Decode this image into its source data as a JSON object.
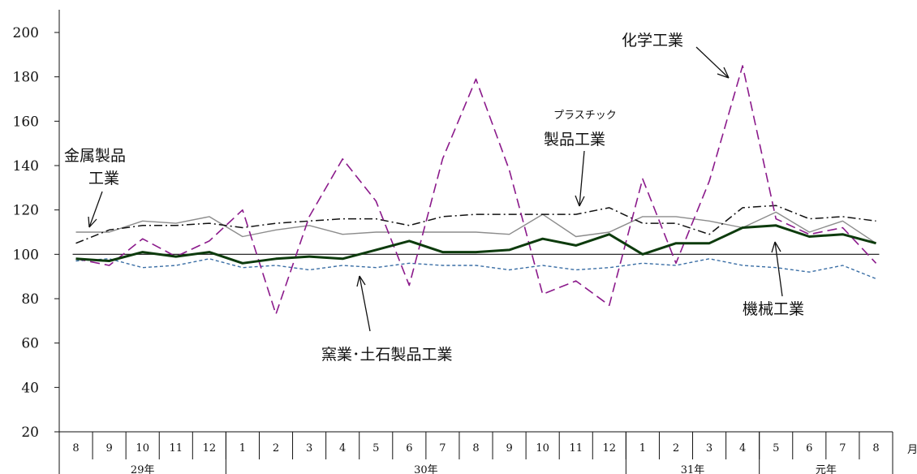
{
  "chart_data": {
    "type": "line",
    "ylim": [
      20,
      200
    ],
    "y_ticks": [
      "20",
      "40",
      "60",
      "80",
      "100",
      "120",
      "140",
      "160",
      "180",
      "200"
    ],
    "month_unit": "月",
    "categories": [
      "8",
      "9",
      "10",
      "11",
      "12",
      "1",
      "2",
      "3",
      "4",
      "5",
      "6",
      "7",
      "8",
      "9",
      "10",
      "11",
      "12",
      "1",
      "2",
      "3",
      "4",
      "5",
      "6",
      "7",
      "8"
    ],
    "year_groups": [
      {
        "label": "29年",
        "count": 5
      },
      {
        "label": "30年",
        "count": 12
      },
      {
        "label": "31年",
        "count": 4
      },
      {
        "label": "元年",
        "count": 4
      }
    ],
    "reference_line": 100,
    "series": [
      {
        "name": "化学工業",
        "color": "#8b1a8b",
        "style": "long-dash",
        "values": [
          98,
          95,
          107,
          99,
          106,
          120,
          73,
          117,
          143,
          124,
          86,
          143,
          179,
          138,
          82,
          88,
          77,
          134,
          96,
          133,
          185,
          116,
          109,
          112,
          96
        ]
      },
      {
        "name": "プラスチック製品工業",
        "color": "#111111",
        "style": "dash-dot",
        "values": [
          105,
          111,
          113,
          113,
          114,
          112,
          114,
          115,
          116,
          116,
          113,
          117,
          118,
          118,
          118,
          118,
          121,
          114,
          114,
          109,
          121,
          122,
          116,
          117,
          115
        ]
      },
      {
        "name": "金属製品工業",
        "color": "#8c8c8c",
        "style": "solid",
        "values": [
          110,
          110,
          115,
          114,
          117,
          108,
          111,
          113,
          109,
          110,
          110,
          110,
          110,
          109,
          118,
          108,
          110,
          117,
          117,
          115,
          112,
          119,
          110,
          115,
          105
        ]
      },
      {
        "name": "機械工業",
        "color": "#0d3b0d",
        "style": "thick",
        "values": [
          98,
          97,
          101,
          99,
          101,
          96,
          98,
          99,
          98,
          102,
          106,
          101,
          101,
          102,
          107,
          104,
          109,
          100,
          105,
          105,
          112,
          113,
          108,
          109,
          105
        ]
      },
      {
        "name": "窯業・土石製品工業",
        "color": "#3a6ea5",
        "style": "short-dash",
        "values": [
          97,
          98,
          94,
          95,
          98,
          94,
          95,
          93,
          95,
          94,
          96,
          95,
          95,
          93,
          95,
          93,
          94,
          96,
          95,
          98,
          95,
          94,
          92,
          95,
          89
        ]
      }
    ],
    "annotations": [
      {
        "label": "化学工業"
      },
      {
        "label": "プラスチック",
        "label2": "製品工業"
      },
      {
        "label": "金属製品",
        "label2": "工業"
      },
      {
        "label": "機械工業"
      },
      {
        "label": "窯業･土石製品工業"
      }
    ],
    "grid": false,
    "legend": "none"
  }
}
